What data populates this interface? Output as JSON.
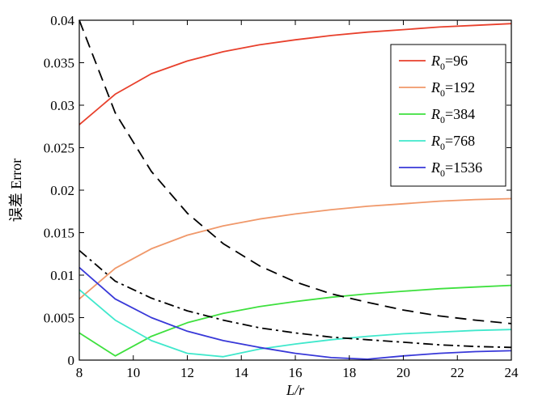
{
  "chart_data": {
    "type": "line",
    "title": "",
    "xlabel": "L/r",
    "xlabel_parts": {
      "main": "L",
      "rest": "/r"
    },
    "ylabel": "误差 Error",
    "xlim": [
      8,
      24
    ],
    "ylim": [
      0,
      0.04
    ],
    "xticks": [
      "8",
      "10",
      "12",
      "14",
      "16",
      "18",
      "20",
      "22",
      "24"
    ],
    "yticks": [
      "0",
      "0.005",
      "0.01",
      "0.015",
      "0.02",
      "0.025",
      "0.03",
      "0.035",
      "0.04"
    ],
    "grid": false,
    "legend_position": "top-right",
    "series": [
      {
        "name": "R0=96",
        "legend": {
          "var": "R",
          "sub": "0",
          "val": "=96"
        },
        "color": "#e8402c",
        "style": "solid",
        "x": [
          8,
          9.33,
          10.67,
          12,
          13.33,
          14.67,
          16,
          17.33,
          18.67,
          20,
          21.33,
          22.67,
          24
        ],
        "y": [
          0.0277,
          0.0313,
          0.0337,
          0.0352,
          0.0363,
          0.0371,
          0.0377,
          0.0382,
          0.0386,
          0.0389,
          0.0392,
          0.0394,
          0.0396
        ]
      },
      {
        "name": "R0=192",
        "legend": {
          "var": "R",
          "sub": "0",
          "val": "=192"
        },
        "color": "#f0986a",
        "style": "solid",
        "x": [
          8,
          9.33,
          10.67,
          12,
          13.33,
          14.67,
          16,
          17.33,
          18.67,
          20,
          21.33,
          22.67,
          24
        ],
        "y": [
          0.0072,
          0.0108,
          0.0131,
          0.0147,
          0.0158,
          0.0166,
          0.0172,
          0.0177,
          0.0181,
          0.0184,
          0.0187,
          0.0189,
          0.019
        ]
      },
      {
        "name": "R0=384",
        "legend": {
          "var": "R",
          "sub": "0",
          "val": "=384"
        },
        "color": "#3ee03e",
        "style": "solid",
        "x": [
          8,
          9.33,
          10.67,
          12,
          13.33,
          14.67,
          16,
          17.33,
          18.67,
          20,
          21.33,
          22.67,
          24
        ],
        "y": [
          0.0032,
          0.0005,
          0.0028,
          0.0044,
          0.0055,
          0.0063,
          0.0069,
          0.0074,
          0.0078,
          0.0081,
          0.0084,
          0.0086,
          0.0088
        ]
      },
      {
        "name": "R0=768",
        "legend": {
          "var": "R",
          "sub": "0",
          "val": "=768"
        },
        "color": "#40e8cc",
        "style": "solid",
        "x": [
          8,
          9.33,
          10.67,
          12,
          13.33,
          14.67,
          16,
          17.33,
          18.67,
          20,
          21.33,
          22.67,
          24
        ],
        "y": [
          0.0083,
          0.0047,
          0.0023,
          0.0008,
          0.0004,
          0.0013,
          0.0019,
          0.0024,
          0.0028,
          0.0031,
          0.0033,
          0.0035,
          0.0036
        ]
      },
      {
        "name": "R0=1536",
        "legend": {
          "var": "R",
          "sub": "0",
          "val": "=1536"
        },
        "color": "#3838d8",
        "style": "solid",
        "x": [
          8,
          9.33,
          10.67,
          12,
          13.33,
          14.67,
          16,
          17.33,
          18.67,
          20,
          21.33,
          22.67,
          24
        ],
        "y": [
          0.0109,
          0.0072,
          0.005,
          0.0034,
          0.0023,
          0.0015,
          0.0008,
          0.0003,
          0.0001,
          0.0005,
          0.0008,
          0.001,
          0.0011
        ]
      },
      {
        "name": "",
        "color": "#000000",
        "style": "dashed",
        "x": [
          8,
          9.33,
          10.67,
          12,
          13.33,
          14.67,
          16,
          17.33,
          18.67,
          20,
          21.33,
          22.67,
          24
        ],
        "y": [
          0.04,
          0.0291,
          0.0222,
          0.0173,
          0.0137,
          0.0111,
          0.0092,
          0.0078,
          0.0068,
          0.0059,
          0.0052,
          0.0047,
          0.0043
        ]
      },
      {
        "name": "",
        "color": "#000000",
        "style": "dashdot",
        "x": [
          8,
          9.33,
          10.67,
          12,
          13.33,
          14.67,
          16,
          17.33,
          18.67,
          20,
          21.33,
          22.67,
          24
        ],
        "y": [
          0.0129,
          0.0093,
          0.0073,
          0.0058,
          0.0047,
          0.0038,
          0.0032,
          0.0027,
          0.0024,
          0.0021,
          0.0018,
          0.0016,
          0.0015
        ]
      }
    ]
  }
}
